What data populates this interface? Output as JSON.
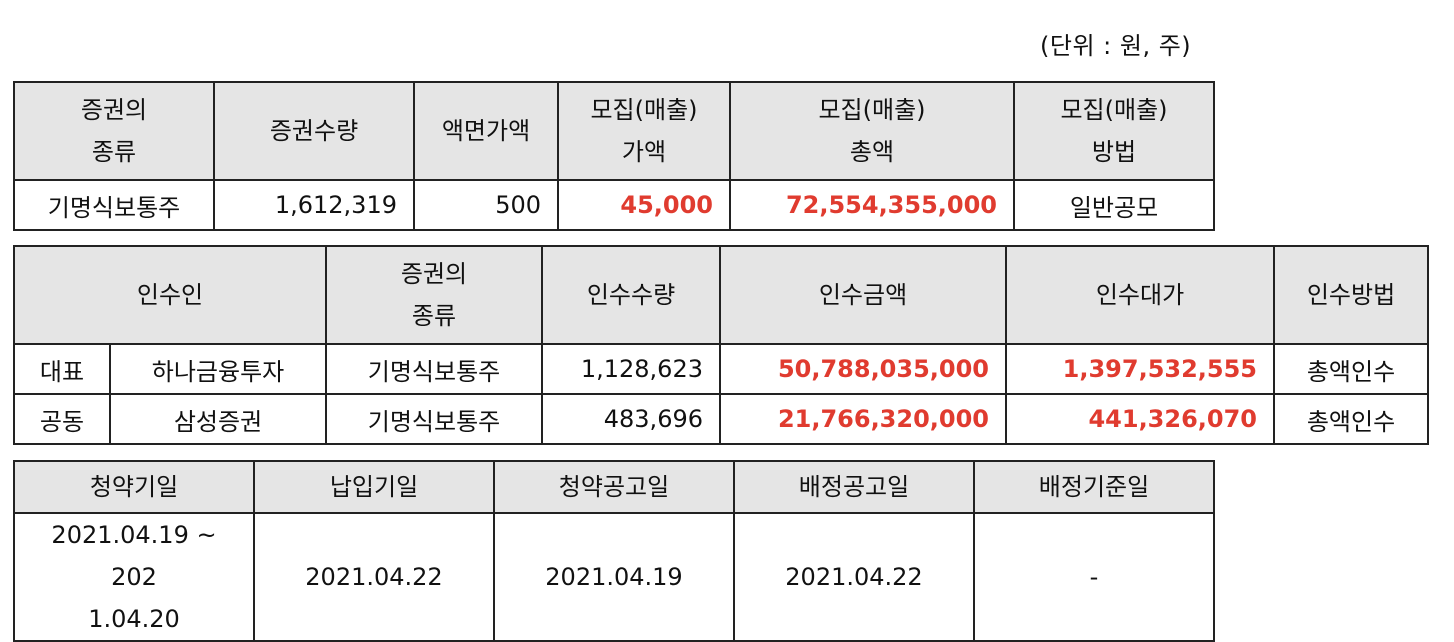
{
  "unit_note": "(단위 : 원, 주)",
  "offering": {
    "headers": [
      [
        "증권의",
        "종류"
      ],
      [
        "증권수량"
      ],
      [
        "액면가액"
      ],
      [
        "모집(매출)",
        "가액"
      ],
      [
        "모집(매출)",
        "총액"
      ],
      [
        "모집(매출)",
        "방법"
      ]
    ],
    "row": {
      "type": "기명식보통주",
      "quantity": "1,612,319",
      "par_value": "500",
      "price": "45,000",
      "total": "72,554,355,000",
      "method": "일반공모"
    }
  },
  "underwriters": {
    "headers": {
      "underwriter": "인수인",
      "type": [
        "증권의",
        "종류"
      ],
      "quantity": "인수수량",
      "amount": "인수금액",
      "fee": "인수대가",
      "method": "인수방법"
    },
    "rows": [
      {
        "role": "대표",
        "name": "하나금융투자",
        "type": "기명식보통주",
        "quantity": "1,128,623",
        "amount": "50,788,035,000",
        "fee": "1,397,532,555",
        "method": "총액인수"
      },
      {
        "role": "공동",
        "name": "삼성증권",
        "type": "기명식보통주",
        "quantity": "483,696",
        "amount": "21,766,320,000",
        "fee": "441,326,070",
        "method": "총액인수"
      }
    ]
  },
  "schedule": {
    "headers": [
      "청약기일",
      "납입기일",
      "청약공고일",
      "배정공고일",
      "배정기준일"
    ],
    "values": {
      "subscription_line1": "2021.04.19 ~ 202",
      "subscription_line2": "1.04.20",
      "payment": "2021.04.22",
      "subscription_notice": "2021.04.19",
      "allotment_notice": "2021.04.22",
      "allotment_base": "-"
    }
  },
  "colors": {
    "header_bg": "#e5e5e5",
    "accent_red": "#e03b2f",
    "border": "#222222"
  }
}
